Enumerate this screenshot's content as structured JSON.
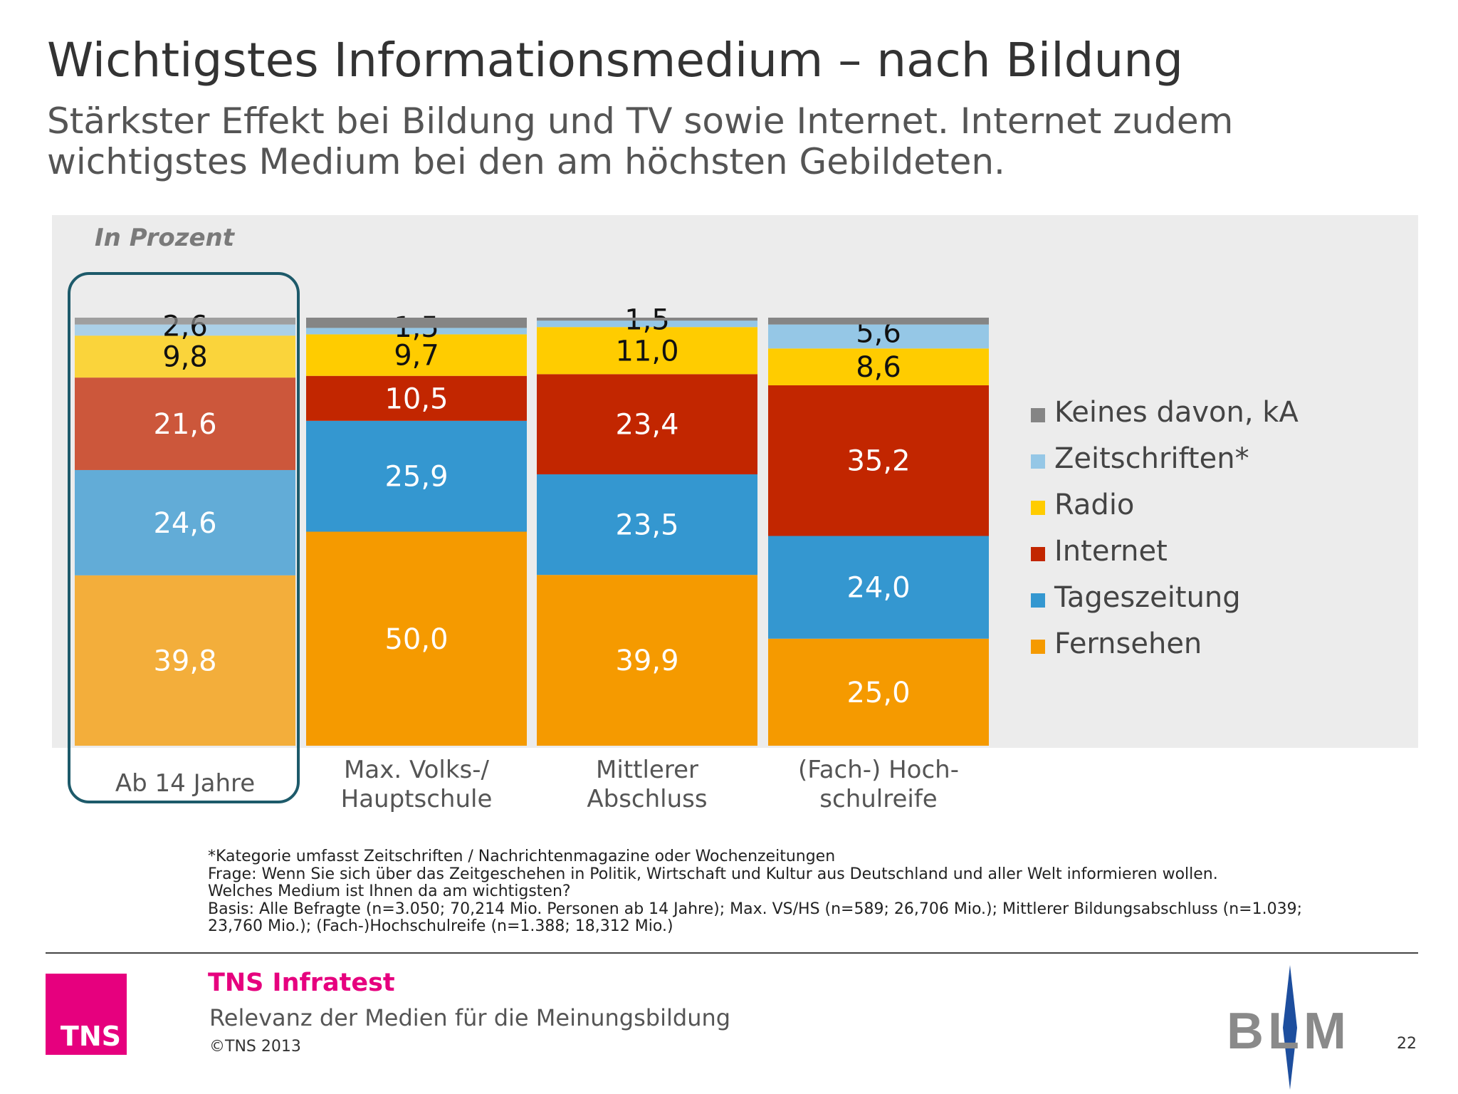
{
  "title": "Wichtigstes Informationsmedium – nach Bildung",
  "subtitle": "Stärkster Effekt bei Bildung und TV sowie Internet. Internet zudem wichtigstes  Medium bei den am höchsten Gebildeten.",
  "unit_label": "In Prozent",
  "chart_data": {
    "type": "bar",
    "stacked": true,
    "categories": [
      "Ab 14 Jahre",
      "Max. Volks-/\nHauptschule",
      "Mittlerer\nAbschluss",
      "(Fach-) Hoch-\nschulreife"
    ],
    "ylim": [
      0,
      100
    ],
    "highlighted_category": "Ab 14 Jahre",
    "legend_position": "right",
    "series": [
      {
        "name": "Fernsehen",
        "color": "#f59a00",
        "values": [
          39.8,
          50.0,
          39.9,
          25.0
        ],
        "labels": [
          "39,8",
          "50,0",
          "39,9",
          "25,0"
        ]
      },
      {
        "name": "Tageszeitung",
        "color": "#3497d0",
        "values": [
          24.6,
          25.9,
          23.5,
          24.0
        ],
        "labels": [
          "24,6",
          "25,9",
          "23,5",
          "24,0"
        ]
      },
      {
        "name": "Internet",
        "color": "#c22600",
        "values": [
          21.6,
          10.5,
          23.4,
          35.2
        ],
        "labels": [
          "21,6",
          "10,5",
          "23,4",
          "35,2"
        ]
      },
      {
        "name": "Radio",
        "color": "#ffcc00",
        "values": [
          9.8,
          9.7,
          11.0,
          8.6
        ],
        "labels": [
          "9,8",
          "9,7",
          "11,0",
          "8,6"
        ]
      },
      {
        "name": "Zeitschriften*",
        "color": "#95c7e6",
        "values": [
          2.6,
          1.5,
          1.5,
          5.6
        ],
        "labels": [
          "2,6",
          "1,5",
          "1,5",
          "5,6"
        ]
      },
      {
        "name": "Keines davon, kA",
        "color": "#858585",
        "values": [
          1.6,
          2.4,
          0.7,
          1.6
        ],
        "labels": [
          "",
          "",
          "",
          ""
        ]
      }
    ]
  },
  "footnotes": [
    "*Kategorie umfasst Zeitschriften / Nachrichtenmagazine oder Wochenzeitungen",
    "Frage: Wenn Sie sich über das Zeitgeschehen in Politik, Wirtschaft und Kultur aus Deutschland und aller Welt informieren wollen.",
    "Welches Medium ist Ihnen da am wichtigsten?",
    "Basis: Alle Befragte (n=3.050; 70,214 Mio. Personen ab 14 Jahre); Max. VS/HS (n=589; 26,706 Mio.); Mittlerer Bildungsabschluss (n=1.039;",
    "23,760 Mio.); (Fach-)Hochschulreife (n=1.388; 18,312 Mio.)"
  ],
  "footer": {
    "logo_text": "TNS",
    "company": "TNS Infratest",
    "report_title": "Relevanz der Medien für die Meinungsbildung",
    "copyright": "©TNS 2013",
    "partner_logo_text": "BLM",
    "page_number": "22"
  },
  "colors": {
    "brand_magenta": "#e6007e",
    "highlight_frame": "#1d5a6a",
    "panel_background": "#ececec"
  }
}
